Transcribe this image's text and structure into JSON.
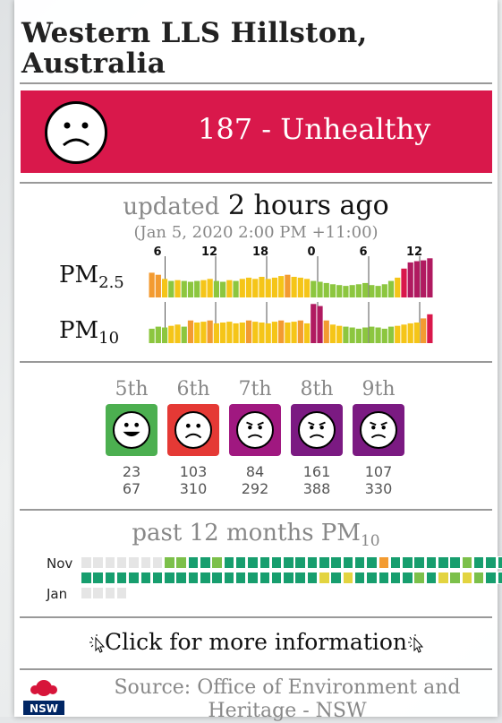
{
  "station": {
    "title": "Western LLS Hillston, Australia"
  },
  "current": {
    "aqi_text": "187 - Unhealthy",
    "color": "#d9184b"
  },
  "updated": {
    "label": "updated",
    "value": "2 hours ago",
    "timestamp": "(Jan 5, 2020 2:00 PM +11:00)"
  },
  "pm25": {
    "label_main": "PM",
    "label_sub": "2.5",
    "tick_labels": [
      "6",
      "12",
      "18",
      "0",
      "6",
      "12"
    ],
    "values": [
      60,
      55,
      45,
      40,
      42,
      40,
      38,
      40,
      42,
      45,
      40,
      38,
      42,
      40,
      45,
      48,
      45,
      50,
      45,
      48,
      52,
      55,
      50,
      48,
      45,
      40,
      38,
      35,
      32,
      30,
      28,
      30,
      32,
      35,
      30,
      28,
      32,
      40,
      48,
      70,
      85,
      88,
      90,
      95
    ]
  },
  "pm10": {
    "label_main": "PM",
    "label_sub": "10",
    "values": [
      35,
      40,
      38,
      42,
      45,
      40,
      55,
      50,
      52,
      55,
      48,
      50,
      52,
      48,
      50,
      55,
      52,
      50,
      48,
      52,
      55,
      50,
      52,
      55,
      48,
      95,
      90,
      55,
      45,
      42,
      40,
      38,
      35,
      38,
      40,
      38,
      35,
      40,
      42,
      45,
      48,
      50,
      60,
      70
    ]
  },
  "forecast": [
    {
      "day": "5th",
      "mood": "happy",
      "color": "#4caf50",
      "values": [
        "23",
        "67"
      ]
    },
    {
      "day": "6th",
      "mood": "sad",
      "color": "#e53935",
      "values": [
        "103",
        "310"
      ]
    },
    {
      "day": "7th",
      "mood": "angry",
      "color": "#a01880",
      "values": [
        "84",
        "292"
      ]
    },
    {
      "day": "8th",
      "mood": "angry",
      "color": "#7b1a82",
      "values": [
        "161",
        "388"
      ]
    },
    {
      "day": "9th",
      "mood": "angry",
      "color": "#7b1a82",
      "values": [
        "107",
        "330"
      ]
    }
  ],
  "history": {
    "title_main": "past 12 months PM",
    "title_sub": "10",
    "month_labels": [
      "Nov",
      "Jan"
    ],
    "rows": [
      [
        "e",
        "e",
        "e",
        "e",
        "e",
        "e",
        "e",
        "g",
        "g",
        "t",
        "t",
        "g",
        "t",
        "t",
        "t",
        "t",
        "t",
        "t",
        "t",
        "t",
        "t",
        "t",
        "t",
        "t",
        "t",
        "o",
        "t",
        "t",
        "t",
        "t",
        "t",
        "t",
        "g",
        "t",
        "t",
        "t",
        "e"
      ],
      [
        "t",
        "t",
        "t",
        "t",
        "t",
        "t",
        "t",
        "t",
        "t",
        "t",
        "t",
        "t",
        "t",
        "t",
        "t",
        "t",
        "t",
        "t",
        "t",
        "t",
        "y",
        "t",
        "y",
        "t",
        "t",
        "t",
        "t",
        "t",
        "g",
        "t",
        "y",
        "g",
        "y",
        "g",
        "t",
        "t",
        "e"
      ],
      [
        "e",
        "e",
        "e",
        "e"
      ]
    ],
    "colors": {
      "e": "#e5e5e5",
      "t": "#179e6e",
      "g": "#7cc04a",
      "y": "#e3d440",
      "o": "#f39b31"
    }
  },
  "more_info": "Click for more information",
  "source": "Source: Office of Environment and Heritage - NSW",
  "logo_text": "NSW"
}
